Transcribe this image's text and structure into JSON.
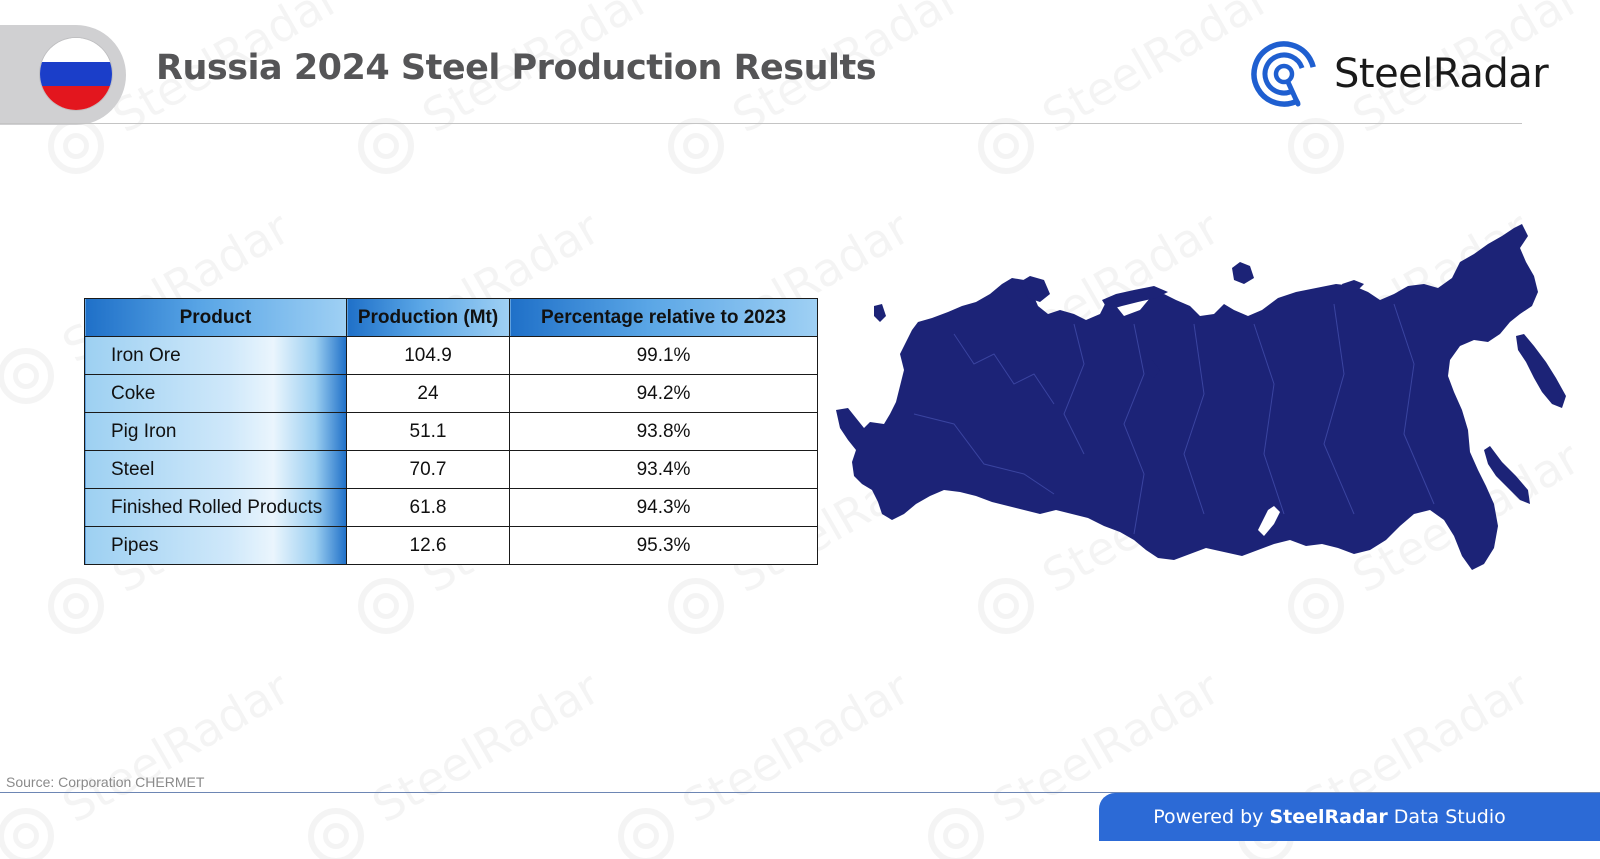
{
  "header": {
    "title": "Russia 2024 Steel Production Results",
    "logo_text": "SteelRadar",
    "flag_country": "Russia",
    "flag_colors": [
      "#ffffff",
      "#1b3ec9",
      "#e3161e"
    ]
  },
  "watermark_text": "SteelRadar",
  "table": {
    "headers": [
      "Product",
      "Production (Mt)",
      "Percentage relative to 2023"
    ],
    "rows": [
      {
        "product": "Iron Ore",
        "production": "104.9",
        "percentage": "99.1%"
      },
      {
        "product": "Coke",
        "production": "24",
        "percentage": "94.2%"
      },
      {
        "product": "Pig Iron",
        "production": "51.1",
        "percentage": "93.8%"
      },
      {
        "product": "Steel",
        "production": "70.7",
        "percentage": "93.4%"
      },
      {
        "product": "Finished Rolled Products",
        "production": "61.8",
        "percentage": "94.3%"
      },
      {
        "product": "Pipes",
        "production": "12.6",
        "percentage": "95.3%"
      }
    ]
  },
  "map": {
    "country": "Russia",
    "color": "#1c2377"
  },
  "source": "Source: Corporation CHERMET",
  "footer": {
    "prefix": "Powered by",
    "brand": "SteelRadar",
    "suffix": "Data Studio",
    "color": "#2c6ad6"
  }
}
